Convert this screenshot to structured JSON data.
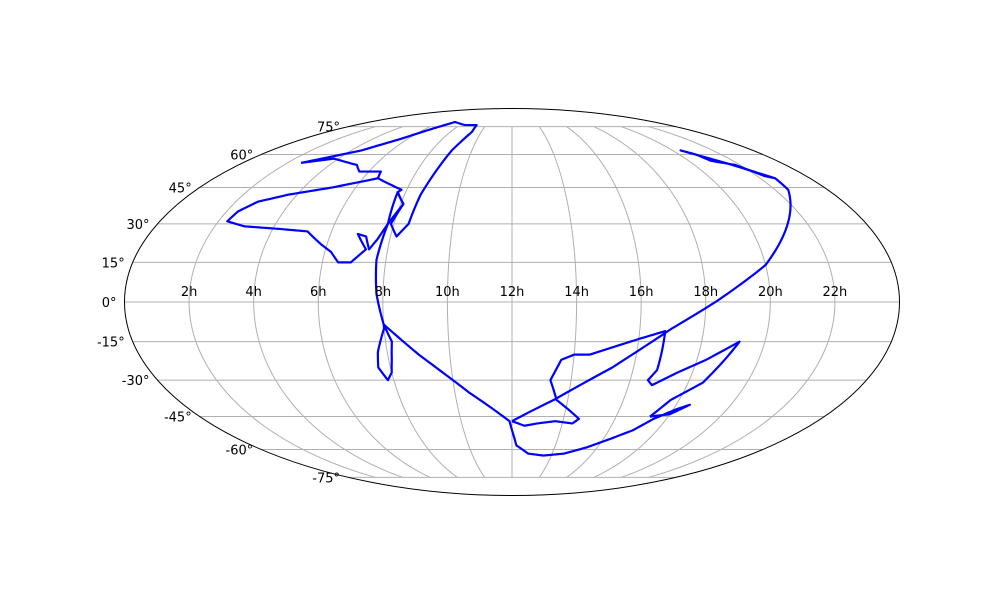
{
  "chart_data": {
    "type": "line",
    "projection": "mollweide",
    "grid": true,
    "colors": {
      "outline": "#0000ff",
      "grid": "#b0b0b0",
      "frame": "#000000"
    },
    "lon_ticks": [
      {
        "hours": 2,
        "label": "2h"
      },
      {
        "hours": 4,
        "label": "4h"
      },
      {
        "hours": 6,
        "label": "6h"
      },
      {
        "hours": 8,
        "label": "8h"
      },
      {
        "hours": 10,
        "label": "10h"
      },
      {
        "hours": 12,
        "label": "12h"
      },
      {
        "hours": 14,
        "label": "14h"
      },
      {
        "hours": 16,
        "label": "16h"
      },
      {
        "hours": 18,
        "label": "18h"
      },
      {
        "hours": 20,
        "label": "20h"
      },
      {
        "hours": 22,
        "label": "22h"
      }
    ],
    "lat_ticks": [
      {
        "deg": 75,
        "label": "75°"
      },
      {
        "deg": 60,
        "label": "60°"
      },
      {
        "deg": 45,
        "label": "45°"
      },
      {
        "deg": 30,
        "label": "30°"
      },
      {
        "deg": 15,
        "label": "15°"
      },
      {
        "deg": 0,
        "label": "0°"
      },
      {
        "deg": -15,
        "label": "-15°"
      },
      {
        "deg": -30,
        "label": "-30°"
      },
      {
        "deg": -45,
        "label": "-45°"
      },
      {
        "deg": -60,
        "label": "-60°"
      },
      {
        "deg": -75,
        "label": "-75°"
      }
    ],
    "series": [
      {
        "points": [
          [
            2.6,
            56
          ],
          [
            4.5,
            62
          ],
          [
            5.6,
            68
          ],
          [
            6.5,
            74
          ],
          [
            7.2,
            78
          ],
          [
            8.4,
            76
          ],
          [
            9.3,
            76
          ],
          [
            9.4,
            72
          ],
          [
            9.0,
            62
          ],
          [
            8.6,
            42
          ],
          [
            8.5,
            30
          ],
          [
            8.2,
            25
          ],
          [
            7.9,
            30
          ],
          [
            8.1,
            38
          ],
          [
            7.7,
            43
          ],
          [
            7.8,
            44
          ],
          [
            6.6,
            49
          ],
          [
            6.5,
            52
          ],
          [
            5.6,
            52
          ],
          [
            5.2,
            55
          ],
          [
            3.8,
            58
          ],
          [
            3.2,
            57
          ],
          [
            2.6,
            56
          ]
        ]
      },
      {
        "points": [
          [
            6.6,
            49
          ],
          [
            5.1,
            45
          ],
          [
            3.7,
            42
          ],
          [
            2.8,
            39
          ],
          [
            2.4,
            35
          ],
          [
            2.3,
            31
          ],
          [
            3.0,
            29
          ],
          [
            4.2,
            28
          ],
          [
            5.2,
            27
          ],
          [
            5.8,
            22
          ],
          [
            6.2,
            19
          ],
          [
            6.5,
            15
          ],
          [
            6.9,
            15
          ],
          [
            7.3,
            20
          ],
          [
            6.9,
            26
          ],
          [
            7.2,
            25
          ],
          [
            7.4,
            20
          ],
          [
            7.6,
            24
          ],
          [
            7.8,
            30
          ],
          [
            8.1,
            38
          ],
          [
            7.7,
            43
          ]
        ]
      },
      {
        "points": [
          [
            7.7,
            43
          ],
          [
            7.8,
            30
          ],
          [
            7.7,
            16
          ],
          [
            7.8,
            3
          ],
          [
            8.0,
            -8.5
          ],
          [
            8.2,
            -15
          ],
          [
            8.1,
            -22
          ],
          [
            8.0,
            -27
          ],
          [
            7.8,
            -30
          ],
          [
            7.6,
            -25
          ],
          [
            7.7,
            -19
          ],
          [
            8.0,
            -10
          ],
          [
            8.0,
            -8.5
          ]
        ]
      },
      {
        "points": [
          [
            8.0,
            -8.5
          ],
          [
            9.0,
            -20
          ],
          [
            10.5,
            -35
          ],
          [
            11.9,
            -47
          ],
          [
            12.0,
            -51
          ],
          [
            12.2,
            -58
          ],
          [
            12.8,
            -62
          ],
          [
            13.6,
            -63
          ],
          [
            14.6,
            -62
          ],
          [
            15.5,
            -59
          ],
          [
            16.3,
            -55
          ],
          [
            17.0,
            -51
          ],
          [
            17.5,
            -46
          ],
          [
            18.1,
            -42
          ],
          [
            18.5,
            -40
          ],
          [
            18.0,
            -44
          ],
          [
            17.3,
            -45
          ]
        ]
      },
      {
        "points": [
          [
            17.3,
            -45
          ],
          [
            17.7,
            -38
          ],
          [
            18.5,
            -31
          ],
          [
            18.9,
            -22
          ],
          [
            19.2,
            -15
          ],
          [
            18.3,
            -22
          ],
          [
            17.5,
            -27
          ],
          [
            16.8,
            -32
          ],
          [
            16.6,
            -30
          ],
          [
            16.8,
            -26
          ],
          [
            16.8,
            -11
          ],
          [
            16.0,
            -14
          ],
          [
            15.0,
            -18
          ],
          [
            14.5,
            -20
          ],
          [
            14.0,
            -20
          ],
          [
            13.6,
            -22
          ],
          [
            13.3,
            -30
          ],
          [
            13.6,
            -38
          ],
          [
            14.1,
            -42
          ],
          [
            14.6,
            -46
          ],
          [
            14.4,
            -48
          ],
          [
            13.7,
            -47
          ],
          [
            13.0,
            -48
          ],
          [
            12.5,
            -49
          ],
          [
            12.0,
            -47
          ]
        ]
      },
      {
        "points": [
          [
            12.0,
            -47
          ],
          [
            13.5,
            -38
          ],
          [
            15.3,
            -25
          ],
          [
            17.0,
            -10
          ],
          [
            18.3,
            0
          ],
          [
            20.0,
            14
          ],
          [
            21.5,
            32
          ],
          [
            22.5,
            44
          ],
          [
            22.6,
            49
          ],
          [
            22.3,
            50
          ],
          [
            21.8,
            55
          ],
          [
            21.0,
            57
          ],
          [
            20.8,
            60
          ],
          [
            20.4,
            62
          ],
          [
            21.5,
            56
          ],
          [
            22.6,
            49
          ]
        ]
      }
    ]
  }
}
